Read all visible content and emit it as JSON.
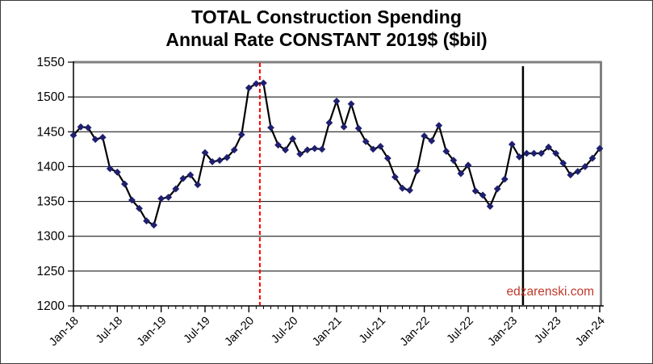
{
  "chart_data": {
    "type": "line",
    "title_line1": "TOTAL Construction Spending",
    "title_line2": "Annual Rate CONSTANT 2019$ ($bil)",
    "xlabel": "",
    "ylabel": "",
    "ylim": [
      1200,
      1550
    ],
    "y_tick_step": 50,
    "y_tick_labels": [
      "1200",
      "1250",
      "1300",
      "1350",
      "1400",
      "1450",
      "1500",
      "1550"
    ],
    "x_tick_labels": [
      "Jan-18",
      "Jul-18",
      "Jan-19",
      "Jul-19",
      "Jan-20",
      "Jul-20",
      "Jan-21",
      "Jul-21",
      "Jan-22",
      "Jul-22",
      "Jan-23",
      "Jul-23",
      "Jan-24"
    ],
    "x_tick_every": 6,
    "grid": "horizontal",
    "legend": "none",
    "marker": "diamond",
    "line_color": "#000000",
    "marker_color": "#1F1F70",
    "x": [
      "Jan-18",
      "Feb-18",
      "Mar-18",
      "Apr-18",
      "May-18",
      "Jun-18",
      "Jul-18",
      "Aug-18",
      "Sep-18",
      "Oct-18",
      "Nov-18",
      "Dec-18",
      "Jan-19",
      "Feb-19",
      "Mar-19",
      "Apr-19",
      "May-19",
      "Jun-19",
      "Jul-19",
      "Aug-19",
      "Sep-19",
      "Oct-19",
      "Nov-19",
      "Dec-19",
      "Jan-20",
      "Feb-20",
      "Mar-20",
      "Apr-20",
      "May-20",
      "Jun-20",
      "Jul-20",
      "Aug-20",
      "Sep-20",
      "Oct-20",
      "Nov-20",
      "Dec-20",
      "Jan-21",
      "Feb-21",
      "Mar-21",
      "Apr-21",
      "May-21",
      "Jun-21",
      "Jul-21",
      "Aug-21",
      "Sep-21",
      "Oct-21",
      "Nov-21",
      "Dec-21",
      "Jan-22",
      "Feb-22",
      "Mar-22",
      "Apr-22",
      "May-22",
      "Jun-22",
      "Jul-22",
      "Aug-22",
      "Sep-22",
      "Oct-22",
      "Nov-22",
      "Dec-22",
      "Jan-23",
      "Feb-23",
      "Mar-23",
      "Apr-23",
      "May-23",
      "Jun-23",
      "Jul-23",
      "Aug-23",
      "Sep-23",
      "Oct-23",
      "Nov-23",
      "Dec-23",
      "Jan-24"
    ],
    "values": [
      1445,
      1457,
      1456,
      1439,
      1442,
      1397,
      1392,
      1375,
      1352,
      1340,
      1322,
      1316,
      1354,
      1356,
      1368,
      1383,
      1388,
      1374,
      1420,
      1407,
      1409,
      1413,
      1424,
      1446,
      1513,
      1519,
      1520,
      1456,
      1431,
      1424,
      1440,
      1418,
      1424,
      1426,
      1425,
      1463,
      1494,
      1457,
      1490,
      1455,
      1436,
      1425,
      1429,
      1412,
      1385,
      1369,
      1366,
      1394,
      1444,
      1437,
      1459,
      1422,
      1409,
      1390,
      1402,
      1365,
      1359,
      1343,
      1368,
      1382,
      1432,
      1414,
      1419,
      1419,
      1419,
      1428,
      1419,
      1405,
      1388,
      1393,
      1400,
      1412,
      1426
    ],
    "vlines": [
      {
        "name": "red-dashed-marker",
        "x_index": 25.5,
        "between": [
          "Feb-20",
          "Mar-20"
        ],
        "color": "#FF0000",
        "style": "dashed",
        "width": 2
      },
      {
        "name": "black-solid-marker",
        "x_index": 61.5,
        "between": [
          "Feb-23",
          "Mar-23"
        ],
        "color": "#000000",
        "style": "solid",
        "width": 2.5
      }
    ],
    "watermark": {
      "text": "edzarenski.com",
      "color": "#C0392B"
    },
    "border_colors": {
      "top_right": "#808080",
      "axes": "#000000"
    }
  }
}
